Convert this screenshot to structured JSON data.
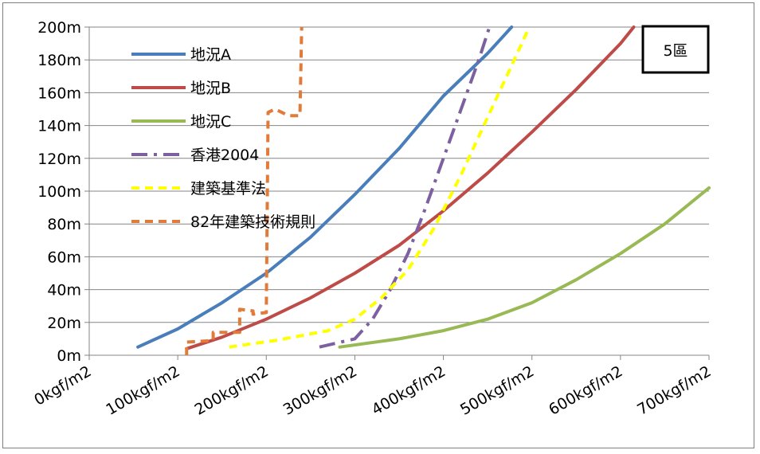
{
  "chart_data": {
    "type": "line",
    "title": "",
    "xlabel": "",
    "ylabel": "",
    "xlim": [
      0,
      700
    ],
    "ylim": [
      0,
      200
    ],
    "x_ticks": [
      0,
      100,
      200,
      300,
      400,
      500,
      600,
      700
    ],
    "y_ticks": [
      0,
      20,
      40,
      60,
      80,
      100,
      120,
      140,
      160,
      180,
      200
    ],
    "x_unit": "kgf/m2",
    "y_unit": "m",
    "grid": "horizontal",
    "legend_position": "top-left",
    "badge": "5區",
    "series": [
      {
        "name": "地況A",
        "color": "#4a7ebb",
        "dash": "solid",
        "points": [
          [
            55,
            5
          ],
          [
            100,
            16
          ],
          [
            150,
            32
          ],
          [
            200,
            50
          ],
          [
            250,
            72
          ],
          [
            300,
            98
          ],
          [
            350,
            126
          ],
          [
            400,
            158
          ],
          [
            450,
            184
          ],
          [
            477,
            200
          ]
        ]
      },
      {
        "name": "地況B",
        "color": "#be4b48",
        "dash": "solid",
        "points": [
          [
            110,
            4
          ],
          [
            150,
            11
          ],
          [
            200,
            22
          ],
          [
            250,
            35
          ],
          [
            300,
            50
          ],
          [
            350,
            67
          ],
          [
            400,
            88
          ],
          [
            450,
            111
          ],
          [
            500,
            136
          ],
          [
            550,
            162
          ],
          [
            600,
            190
          ],
          [
            615,
            200
          ]
        ]
      },
      {
        "name": "地況C",
        "color": "#98b954",
        "dash": "solid",
        "points": [
          [
            283,
            5
          ],
          [
            350,
            10
          ],
          [
            400,
            15
          ],
          [
            450,
            22
          ],
          [
            500,
            32
          ],
          [
            550,
            46
          ],
          [
            600,
            62
          ],
          [
            650,
            80
          ],
          [
            700,
            102
          ]
        ]
      },
      {
        "name": "香港2004",
        "color": "#7d60a0",
        "dash": "dashdot",
        "points": [
          [
            260,
            5
          ],
          [
            300,
            10
          ],
          [
            320,
            22
          ],
          [
            340,
            40
          ],
          [
            360,
            62
          ],
          [
            380,
            90
          ],
          [
            400,
            120
          ],
          [
            420,
            150
          ],
          [
            440,
            180
          ],
          [
            452,
            200
          ]
        ]
      },
      {
        "name": "建築基準法",
        "color": "#ffff00",
        "dash": "dash",
        "points": [
          [
            158,
            5
          ],
          [
            210,
            9
          ],
          [
            270,
            15
          ],
          [
            300,
            22
          ],
          [
            330,
            35
          ],
          [
            360,
            52
          ],
          [
            390,
            78
          ],
          [
            420,
            110
          ],
          [
            450,
            145
          ],
          [
            480,
            180
          ],
          [
            497,
            200
          ]
        ]
      },
      {
        "name": "82年建築技術規則",
        "color": "#e07b39",
        "dash": "dash",
        "points": [
          [
            110,
            0
          ],
          [
            110,
            8
          ],
          [
            140,
            9
          ],
          [
            140,
            14
          ],
          [
            170,
            14
          ],
          [
            170,
            28
          ],
          [
            185,
            27
          ],
          [
            185,
            25
          ],
          [
            200,
            26
          ],
          [
            202,
            148
          ],
          [
            210,
            150
          ],
          [
            225,
            146
          ],
          [
            238,
            146
          ],
          [
            240,
            200
          ]
        ]
      }
    ]
  }
}
